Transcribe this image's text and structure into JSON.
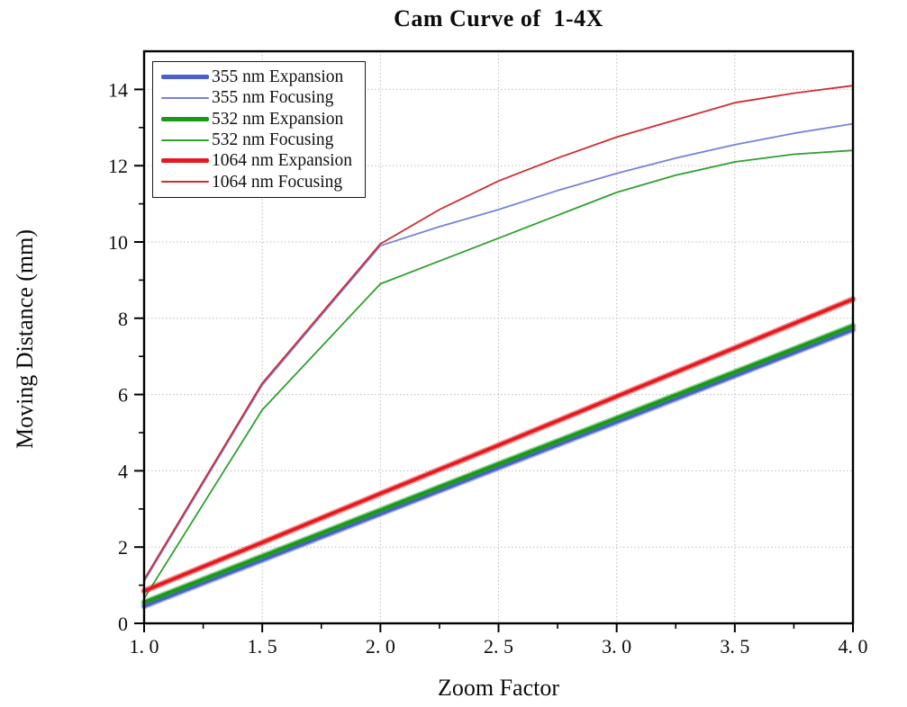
{
  "figure": {
    "title": "Cam Curve of  1-4X",
    "xlabel": "Zoom Factor",
    "ylabel": "Moving Distance (mm)"
  },
  "chart_data": {
    "type": "line",
    "title": "Cam Curve of  1-4X",
    "xlabel": "Zoom Factor",
    "ylabel": "Moving Distance (mm)",
    "xlim": [
      1.0,
      4.0
    ],
    "ylim": [
      0,
      15
    ],
    "grid": "dotted gridlines at major ticks",
    "grid_color": "#bdbdbd",
    "frame_color": "#000000",
    "legend_position": "upper-left",
    "x_ticks": {
      "major": [
        1.0,
        1.5,
        2.0,
        2.5,
        3.0,
        3.5,
        4.0
      ],
      "labels": [
        "1. 0",
        "1. 5",
        "2. 0",
        "2. 5",
        "3. 0",
        "3. 5",
        "4. 0"
      ],
      "minor": [
        1.25,
        1.75,
        2.25,
        2.75,
        3.25,
        3.75
      ]
    },
    "y_ticks": {
      "major": [
        0,
        2,
        4,
        6,
        8,
        10,
        12,
        14
      ],
      "labels": [
        "0",
        "2",
        "4",
        "6",
        "8",
        "10",
        "12",
        "14"
      ],
      "minor": [
        1,
        3,
        5,
        7,
        9,
        11,
        13
      ]
    },
    "series": [
      {
        "name": "355 nm Expansion",
        "style": "thick",
        "color": "#4a5fd0",
        "x": [
          1.0,
          1.5,
          2.0,
          2.5,
          3.0,
          3.5,
          4.0
        ],
        "y": [
          0.45,
          1.66,
          2.87,
          4.08,
          5.28,
          6.49,
          7.7
        ]
      },
      {
        "name": "355 nm Focusing",
        "style": "thin",
        "color": "#7583d8",
        "x": [
          1.0,
          1.5,
          2.0,
          2.25,
          2.5,
          2.75,
          3.0,
          3.25,
          3.5,
          3.75,
          4.0
        ],
        "y": [
          1.1,
          6.25,
          9.9,
          10.4,
          10.85,
          11.35,
          11.8,
          12.2,
          12.55,
          12.85,
          13.1
        ]
      },
      {
        "name": "532 nm Expansion",
        "style": "thick",
        "color": "#189a18",
        "x": [
          1.0,
          1.5,
          2.0,
          2.5,
          3.0,
          3.5,
          4.0
        ],
        "y": [
          0.55,
          1.76,
          2.97,
          4.18,
          5.38,
          6.59,
          7.8
        ]
      },
      {
        "name": "532 nm Focusing",
        "style": "thin",
        "color": "#2fa030",
        "x": [
          1.0,
          1.5,
          2.0,
          2.25,
          2.5,
          2.75,
          3.0,
          3.25,
          3.5,
          3.75,
          4.0
        ],
        "y": [
          0.65,
          5.6,
          8.9,
          9.5,
          10.1,
          10.7,
          11.3,
          11.75,
          12.1,
          12.3,
          12.4
        ]
      },
      {
        "name": "1064 nm Expansion",
        "style": "thick",
        "color": "#e6191d",
        "x": [
          1.0,
          1.5,
          2.0,
          2.5,
          3.0,
          3.5,
          4.0
        ],
        "y": [
          0.85,
          2.12,
          3.4,
          4.67,
          5.95,
          7.22,
          8.5
        ]
      },
      {
        "name": "1064 nm Focusing",
        "style": "thin",
        "color": "#d22b30",
        "x": [
          1.0,
          1.5,
          2.0,
          2.25,
          2.5,
          2.75,
          3.0,
          3.25,
          3.5,
          3.75,
          4.0
        ],
        "y": [
          1.15,
          6.3,
          9.95,
          10.85,
          11.6,
          12.2,
          12.75,
          13.2,
          13.65,
          13.9,
          14.1
        ]
      }
    ]
  }
}
